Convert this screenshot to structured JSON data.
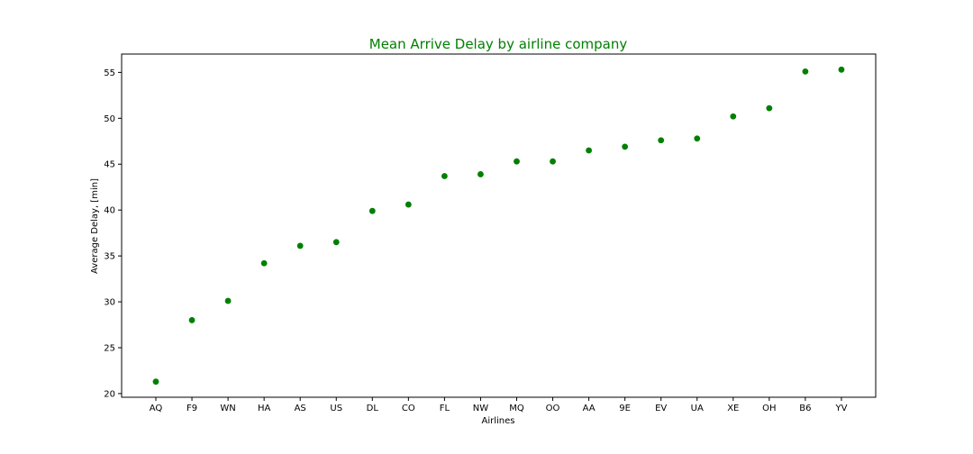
{
  "chart_data": {
    "type": "scatter",
    "title": "Mean Arrive Delay by airline company",
    "xlabel": "Airlines",
    "ylabel": "Average Delay, [min]",
    "categories": [
      "AQ",
      "F9",
      "WN",
      "HA",
      "AS",
      "US",
      "DL",
      "CO",
      "FL",
      "NW",
      "MQ",
      "OO",
      "AA",
      "9E",
      "EV",
      "UA",
      "XE",
      "OH",
      "B6",
      "YV"
    ],
    "values": [
      21.3,
      28.0,
      30.1,
      34.2,
      36.1,
      36.5,
      39.9,
      40.6,
      43.7,
      43.9,
      45.3,
      45.3,
      46.5,
      46.9,
      47.6,
      47.8,
      50.2,
      51.1,
      55.1,
      55.3
    ],
    "yticks": [
      20,
      25,
      30,
      35,
      40,
      45,
      50,
      55
    ],
    "ylim": [
      19.6,
      57.0
    ],
    "marker_color": "#008000",
    "title_color": "#008000",
    "grid": false,
    "legend": "none"
  }
}
